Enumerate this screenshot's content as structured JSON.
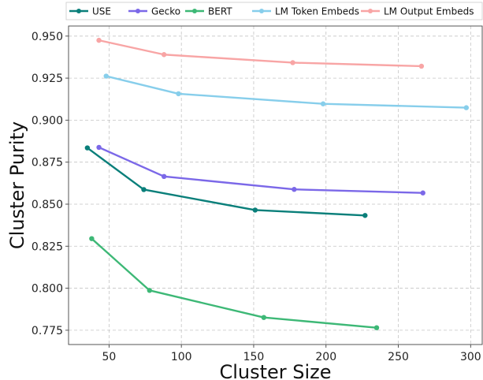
{
  "chart_data": {
    "type": "line",
    "xlabel": "Cluster Size",
    "ylabel": "Cluster Purity",
    "xlim": [
      22,
      308
    ],
    "ylim": [
      0.7665,
      0.956
    ],
    "x_ticks": [
      50,
      100,
      150,
      200,
      250,
      300
    ],
    "x_tick_labels": [
      "50",
      "100",
      "150",
      "200",
      "250",
      "300"
    ],
    "y_ticks": [
      0.775,
      0.8,
      0.825,
      0.85,
      0.875,
      0.9,
      0.925,
      0.95
    ],
    "y_tick_labels": [
      "0.775",
      "0.800",
      "0.825",
      "0.850",
      "0.875",
      "0.900",
      "0.925",
      "0.950"
    ],
    "grid": true,
    "legend_position": "top, outside plot",
    "series": [
      {
        "name": "USE",
        "color": "#0a7f7a",
        "x": [
          35,
          74,
          151,
          227
        ],
        "y": [
          0.8835,
          0.8587,
          0.8465,
          0.8433
        ]
      },
      {
        "name": "Gecko",
        "color": "#7b68e8",
        "x": [
          43,
          88,
          178,
          267
        ],
        "y": [
          0.8838,
          0.8665,
          0.8588,
          0.8567
        ]
      },
      {
        "name": "BERT",
        "color": "#3db876",
        "x": [
          38,
          78,
          157,
          235
        ],
        "y": [
          0.8295,
          0.7987,
          0.7826,
          0.7765
        ]
      },
      {
        "name": "LM Token Embeds",
        "color": "#87ceeb",
        "x": [
          48,
          98,
          198,
          297
        ],
        "y": [
          0.9262,
          0.9157,
          0.9097,
          0.9074
        ]
      },
      {
        "name": "LM Output Embeds",
        "color": "#f8a5a5",
        "x": [
          43,
          88,
          177,
          266
        ],
        "y": [
          0.9475,
          0.939,
          0.9342,
          0.9321
        ]
      }
    ]
  }
}
